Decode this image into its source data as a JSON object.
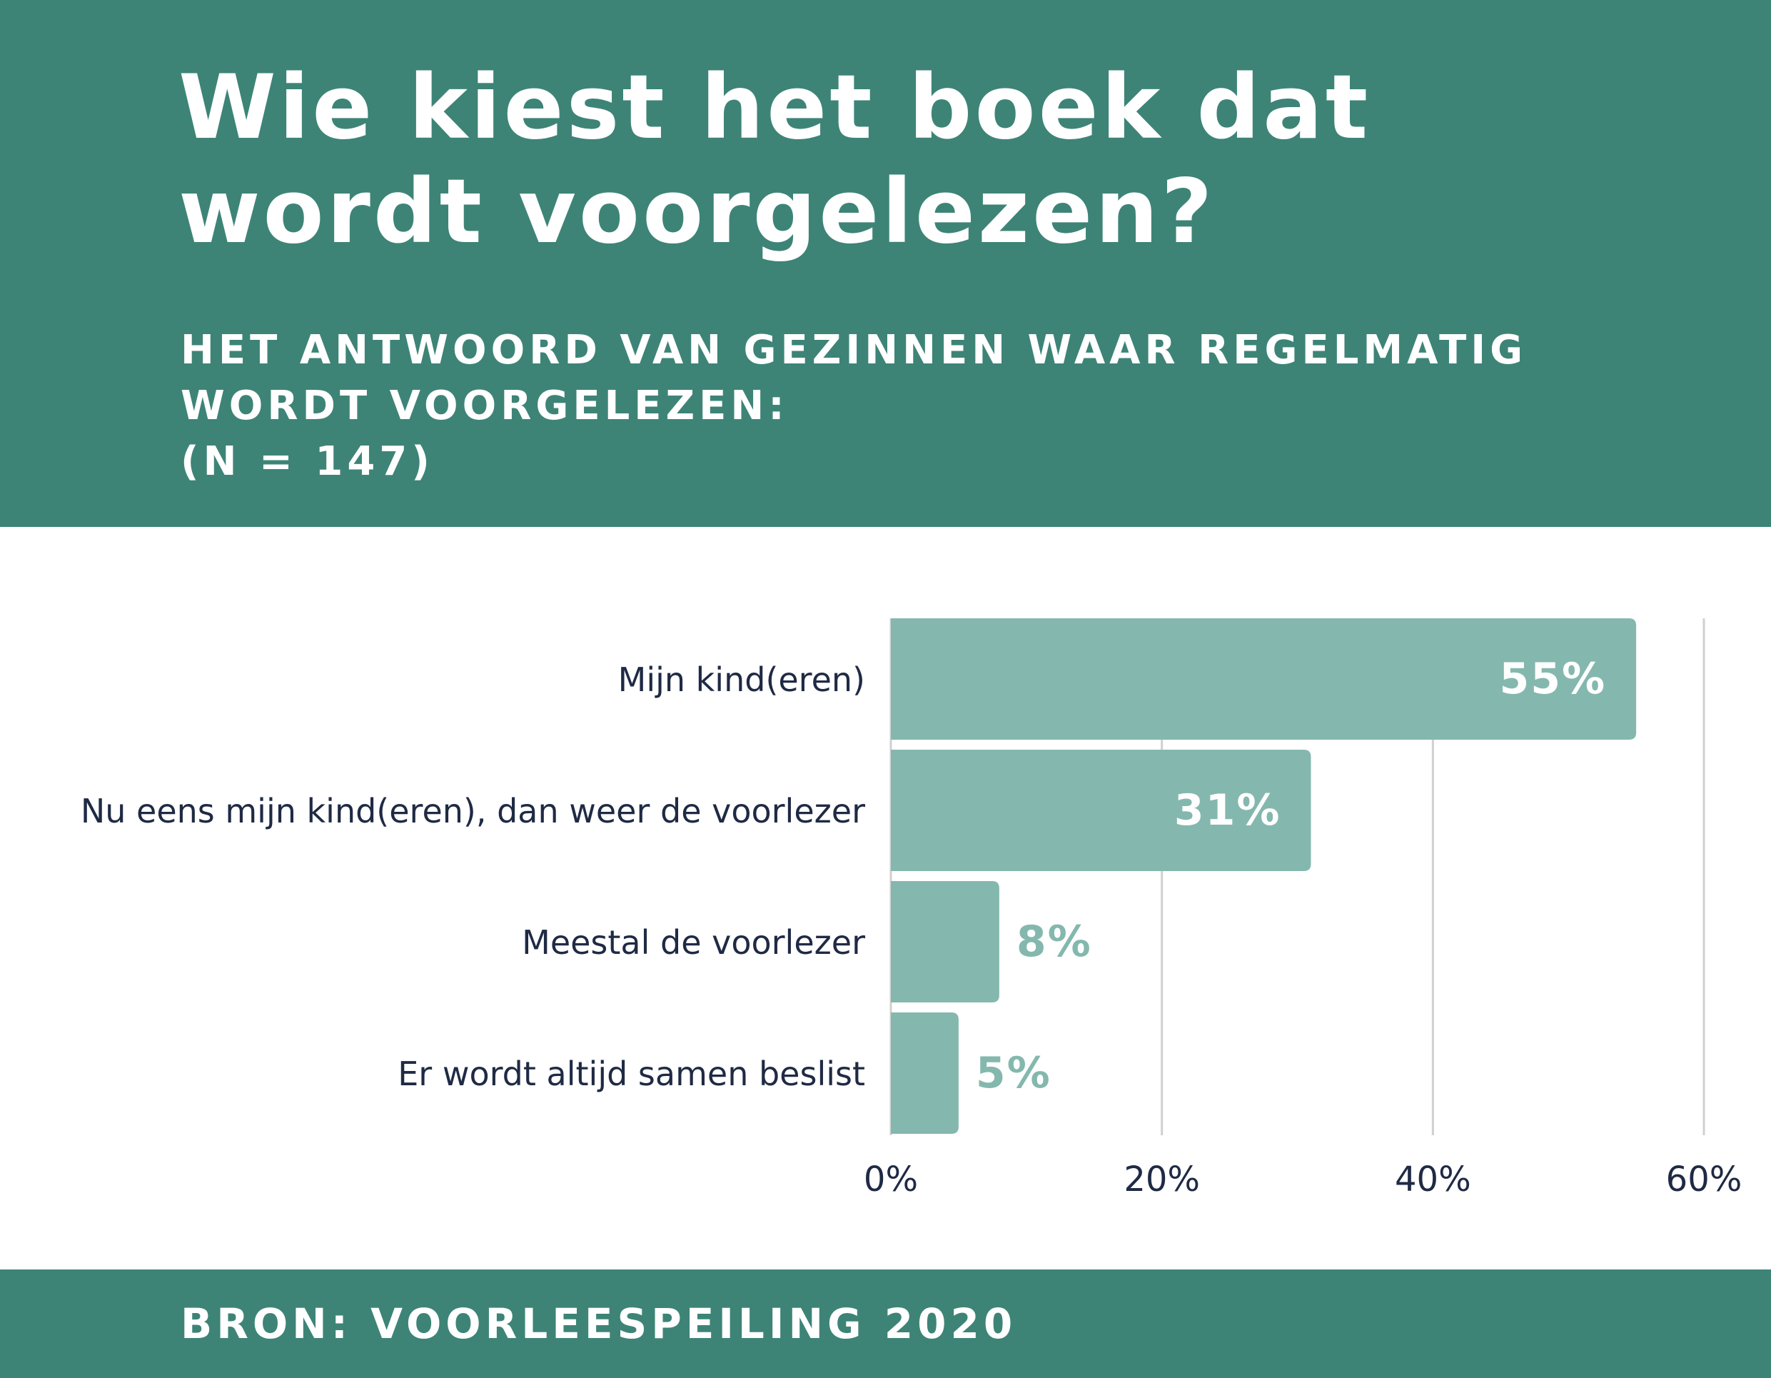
{
  "header": {
    "title": "Wie kiest het boek dat wordt voorgelezen?",
    "subtitle_lines": [
      "HET ANTWOORD VAN GEZINNEN WAAR REGELMATIG",
      "WORDT VOORGELEZEN:",
      "(N = 147)"
    ]
  },
  "footer": {
    "source": "BRON: VOORLEESPEILING 2020"
  },
  "colors": {
    "header_background": "#3d8477",
    "bar": "#84b8ae",
    "label_text": "#1f2a44",
    "grid": "#d0d0d0"
  },
  "chart_data": {
    "type": "bar",
    "orientation": "horizontal",
    "categories": [
      "Mijn kind(eren)",
      "Nu eens mijn kind(eren), dan weer de voorlezer",
      "Meestal de voorlezer",
      "Er wordt altijd samen beslist"
    ],
    "values": [
      55,
      31,
      8,
      5
    ],
    "value_labels": [
      "55%",
      "31%",
      "8%",
      "5%"
    ],
    "xlim": [
      0,
      60
    ],
    "x_ticks": [
      0,
      20,
      40,
      60
    ],
    "x_tick_labels": [
      "0%",
      "20%",
      "40%",
      "60%"
    ],
    "grid": true,
    "legend": "none"
  }
}
